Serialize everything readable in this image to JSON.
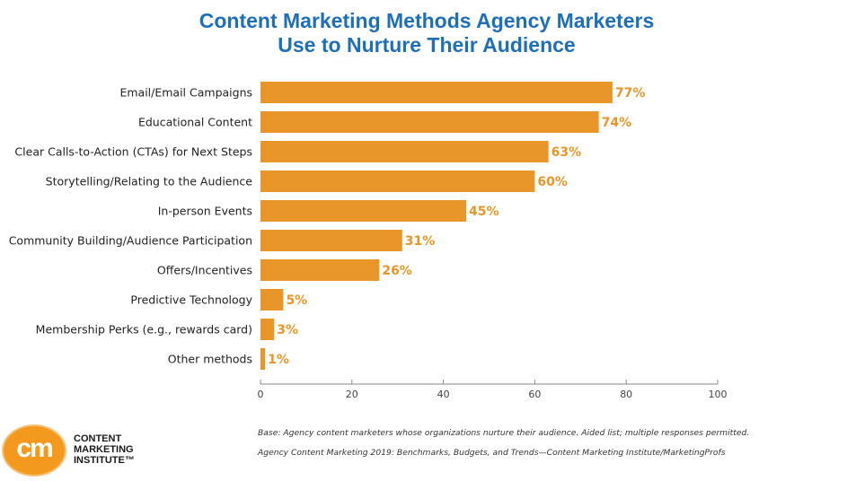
{
  "chart_data": {
    "type": "bar",
    "orientation": "horizontal",
    "title": [
      "Content Marketing Methods Agency Marketers",
      "Use to Nurture Their Audience"
    ],
    "categories": [
      "Email/Email Campaigns",
      "Educational Content",
      "Clear Calls-to-Action (CTAs) for Next Steps",
      "Storytelling/Relating to the Audience",
      "In-person Events",
      "Community Building/Audience Participation",
      "Offers/Incentives",
      "Predictive Technology",
      "Membership Perks (e.g., rewards card)",
      "Other methods"
    ],
    "values": [
      77,
      74,
      63,
      60,
      45,
      31,
      26,
      5,
      3,
      1
    ],
    "value_labels": [
      "77%",
      "74%",
      "63%",
      "60%",
      "45%",
      "31%",
      "26%",
      "5%",
      "3%",
      "1%"
    ],
    "xlim": [
      0,
      100
    ],
    "xticks": [
      0,
      20,
      40,
      60,
      80,
      100
    ],
    "xtick_labels": [
      "0",
      "20",
      "40",
      "60",
      "80",
      "100"
    ],
    "bar_color": "#e8962a",
    "label_color": "#e8962a",
    "grid": false
  },
  "footnotes": {
    "base": "Base: Agency content marketers whose organizations nurture their audience. Aided list; multiple responses permitted.",
    "source": "Agency Content Marketing 2019: Benchmarks, Budgets, and Trends—Content Marketing Institute/MarketingProfs"
  },
  "logo": {
    "mark": "cm",
    "lines": [
      "CONTENT",
      "MARKETING",
      "INSTITUTE™"
    ],
    "color": "#f39a1e"
  }
}
